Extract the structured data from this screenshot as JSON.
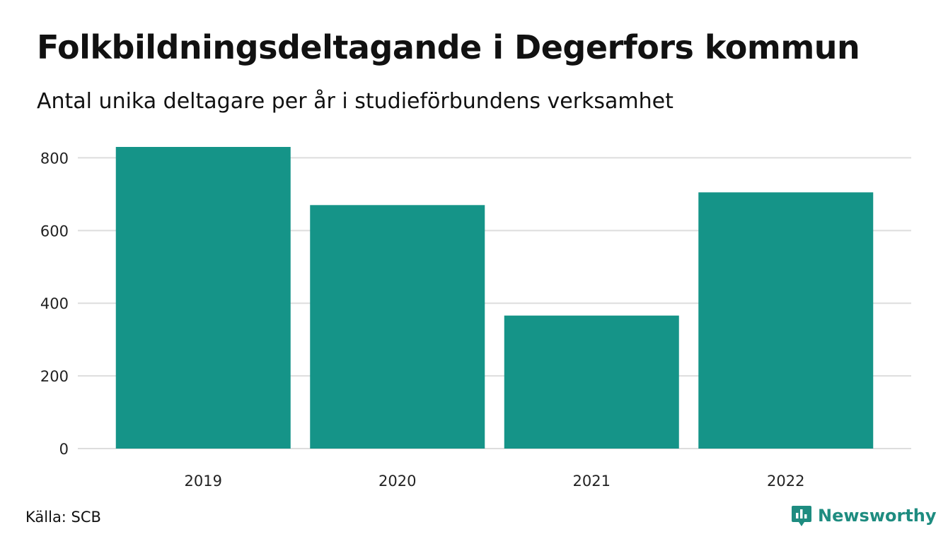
{
  "header": {
    "title": "Folkbildningsdeltagande i Degerfors kommun",
    "subtitle": "Antal unika deltagare per år i studieförbundens verksamhet"
  },
  "footer": {
    "source": "Källa: SCB",
    "brand": "Newsworthy"
  },
  "colors": {
    "bar": "#159488",
    "grid": "#dddddd",
    "brand": "#1e8c80"
  },
  "icons": {
    "brand_logo": "bar-chart-speech-bubble-icon"
  },
  "chart_data": {
    "type": "bar",
    "title": "Folkbildningsdeltagande i Degerfors kommun",
    "subtitle": "Antal unika deltagare per år i studieförbundens verksamhet",
    "categories": [
      "2019",
      "2020",
      "2021",
      "2022"
    ],
    "values": [
      830,
      670,
      366,
      705
    ],
    "xlabel": "",
    "ylabel": "",
    "ylim": [
      0,
      830
    ],
    "yticks": [
      0,
      200,
      400,
      600,
      800
    ],
    "grid": true,
    "legend": "none"
  }
}
